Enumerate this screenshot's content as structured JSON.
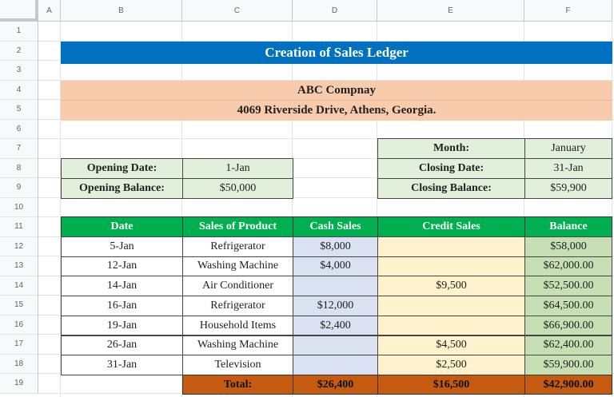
{
  "columns": [
    "A",
    "B",
    "C",
    "D",
    "E",
    "F"
  ],
  "rows": [
    "1",
    "2",
    "3",
    "4",
    "5",
    "6",
    "7",
    "8",
    "9",
    "10",
    "11",
    "12",
    "13",
    "14",
    "15",
    "16",
    "17",
    "18",
    "19"
  ],
  "title": "Creation of Sales Ledger",
  "company": {
    "name": "ABC Compnay",
    "address": "4069 Riverside Drive, Athens, Georgia."
  },
  "opening": {
    "date_label": "Opening Date:",
    "date_value": "1-Jan",
    "balance_label": "Opening Balance:",
    "balance_value": "$50,000"
  },
  "closing": {
    "month_label": "Month:",
    "month_value": "January",
    "date_label": "Closing Date:",
    "date_value": "31-Jan",
    "balance_label": "Closing Balance:",
    "balance_value": "$59,900"
  },
  "ledger": {
    "headers": [
      "Date",
      "Sales of Product",
      "Cash Sales",
      "Credit Sales",
      "Balance"
    ],
    "rows": [
      {
        "date": "5-Jan",
        "product": "Refrigerator",
        "cash": "$8,000",
        "credit": "",
        "balance": "$58,000"
      },
      {
        "date": "12-Jan",
        "product": "Washing Machine",
        "cash": "$4,000",
        "credit": "",
        "balance": "$62,000.00"
      },
      {
        "date": "14-Jan",
        "product": "Air Conditioner",
        "cash": "",
        "credit": "$9,500",
        "balance": "$52,500.00"
      },
      {
        "date": "16-Jan",
        "product": "Refrigerator",
        "cash": "$12,000",
        "credit": "",
        "balance": "$64,500.00"
      },
      {
        "date": "19-Jan",
        "product": "Household Items",
        "cash": "$2,400",
        "credit": "",
        "balance": "$66,900.00"
      },
      {
        "date": "26-Jan",
        "product": "Washing Machine",
        "cash": "",
        "credit": "$4,500",
        "balance": "$62,400.00"
      },
      {
        "date": "31-Jan",
        "product": "Television",
        "cash": "",
        "credit": "$2,500",
        "balance": "$59,900.00"
      }
    ],
    "total": {
      "label": "Total:",
      "cash": "$26,400",
      "credit": "$16,500",
      "balance": "$42,900.00"
    }
  },
  "colors": {
    "title_bg": "#0070c0",
    "company_bg": "#f8cbad",
    "info_bg": "#e2efda",
    "header_bg": "#00b050",
    "cash_bg": "#d9e1f2",
    "credit_bg": "#fff2cc",
    "balance_bg": "#c6e0b4",
    "total_bg": "#c55a11"
  }
}
